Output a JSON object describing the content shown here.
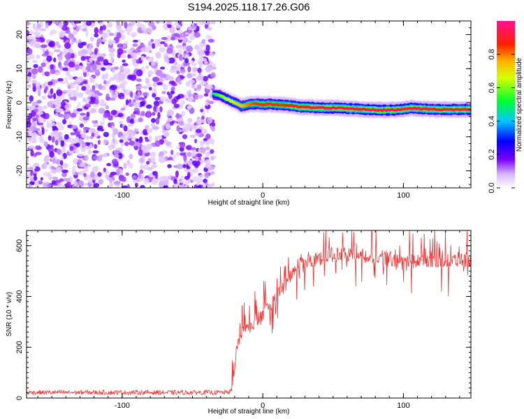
{
  "title": "S194.2025.118.17.26.G06",
  "colors": {
    "trace": "#ee3333",
    "frame": "#000000"
  },
  "chart_data": [
    {
      "type": "heatmap",
      "title": "S194.2025.118.17.26.G06",
      "xlabel": "Height of straight line (km)",
      "ylabel": "Frequency (Hz)",
      "xlim": [
        -168,
        148
      ],
      "ylim": [
        -25,
        24
      ],
      "x_ticks": [
        -100,
        0,
        100
      ],
      "x_tick_labels": [
        "-100",
        "0",
        "100"
      ],
      "y_ticks": [
        -20,
        -10,
        0,
        10,
        20
      ],
      "y_tick_labels": [
        "-20",
        "-10",
        "0",
        "10",
        "20"
      ],
      "noise_region_x": [
        -168,
        -35
      ],
      "signal_ridge": {
        "x": [
          -35,
          -30,
          -25,
          -20,
          -15,
          -10,
          -5,
          0,
          5,
          10,
          15,
          20,
          25,
          35,
          45,
          55,
          65,
          75,
          85,
          95,
          105,
          115,
          125,
          135,
          148
        ],
        "freq": [
          2.5,
          2.0,
          1.0,
          0.0,
          -1.0,
          -0.5,
          -0.3,
          -0.5,
          -0.4,
          -0.6,
          -0.7,
          -0.9,
          -1.2,
          -1.4,
          -1.5,
          -1.6,
          -1.8,
          -2.0,
          -2.2,
          -2.1,
          -1.6,
          -1.8,
          -2.0,
          -2.0,
          -2.0
        ],
        "amplitude": [
          0.5,
          0.6,
          0.65,
          0.7,
          0.75,
          0.8,
          0.85,
          0.85,
          0.85,
          0.85,
          0.85,
          0.88,
          0.9,
          0.92,
          0.93,
          0.93,
          0.92,
          0.92,
          0.93,
          0.93,
          0.92,
          0.92,
          0.92,
          0.92,
          0.92
        ]
      },
      "colorbar": {
        "label": "Normalized spectral amplitude",
        "range": [
          0,
          1
        ],
        "ticks": [
          0.0,
          0.2,
          0.4,
          0.6,
          0.8
        ],
        "tick_labels": [
          "0.0",
          "0.2",
          "0.4",
          "0.6",
          "0.8"
        ]
      }
    },
    {
      "type": "line",
      "xlabel": "Height of straight line (km)",
      "ylabel": "SNR (10 * v/v)",
      "xlim": [
        -168,
        148
      ],
      "ylim": [
        0,
        660
      ],
      "x_ticks": [
        -100,
        0,
        100
      ],
      "x_tick_labels": [
        "-100",
        "0",
        "100"
      ],
      "y_ticks": [
        0,
        200,
        400,
        600
      ],
      "y_tick_labels": [
        "0",
        "200",
        "400",
        "600"
      ],
      "series": [
        {
          "name": "SNR",
          "x": [
            -168,
            -150,
            -120,
            -90,
            -60,
            -35,
            -25,
            -22,
            -20,
            -18,
            -15,
            -10,
            -5,
            0,
            5,
            10,
            15,
            20,
            25,
            30,
            40,
            50,
            60,
            70,
            80,
            90,
            100,
            110,
            120,
            130,
            140,
            148
          ],
          "y": [
            22,
            22,
            22,
            22,
            22,
            22,
            22,
            30,
            120,
            230,
            260,
            280,
            300,
            330,
            360,
            400,
            440,
            480,
            510,
            530,
            555,
            565,
            565,
            560,
            555,
            545,
            540,
            540,
            545,
            545,
            545,
            545
          ]
        }
      ]
    }
  ]
}
